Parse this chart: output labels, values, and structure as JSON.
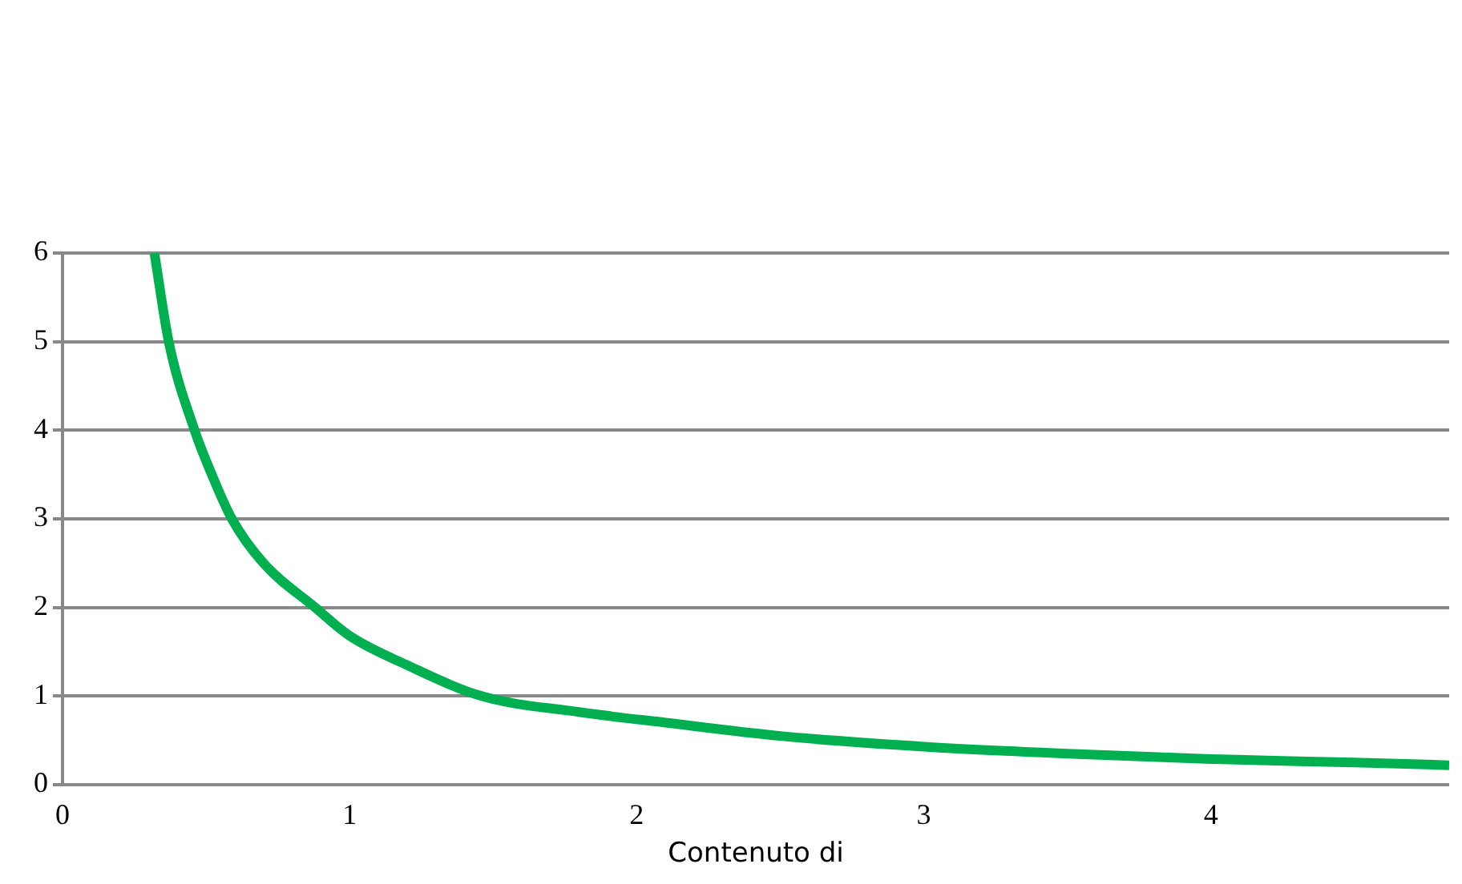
{
  "chart_data": {
    "type": "line",
    "xlabel": "Contenuto di",
    "series": [
      {
        "color": "#00b050",
        "x": [
          0.32,
          0.37,
          0.46,
          0.52,
          0.59,
          0.7,
          0.88,
          1.0,
          1.2,
          1.46,
          1.8,
          2.1,
          2.5,
          3.0,
          3.5,
          4.0,
          4.5,
          4.83
        ],
        "values": [
          6,
          5.0,
          4.0,
          3.5,
          3.0,
          2.5,
          2.0,
          1.68,
          1.35,
          1.0,
          0.82,
          0.7,
          0.55,
          0.43,
          0.35,
          0.29,
          0.25,
          0.22
        ]
      }
    ],
    "xlim": [
      0,
      4.83
    ],
    "xticks": [
      0,
      1,
      2,
      3,
      4
    ],
    "ylim": [
      0,
      6
    ],
    "yticks": [
      0,
      1,
      2,
      3,
      4,
      5,
      6
    ],
    "grid": "y",
    "legend": false,
    "marker": "none",
    "line_style": "solid"
  }
}
